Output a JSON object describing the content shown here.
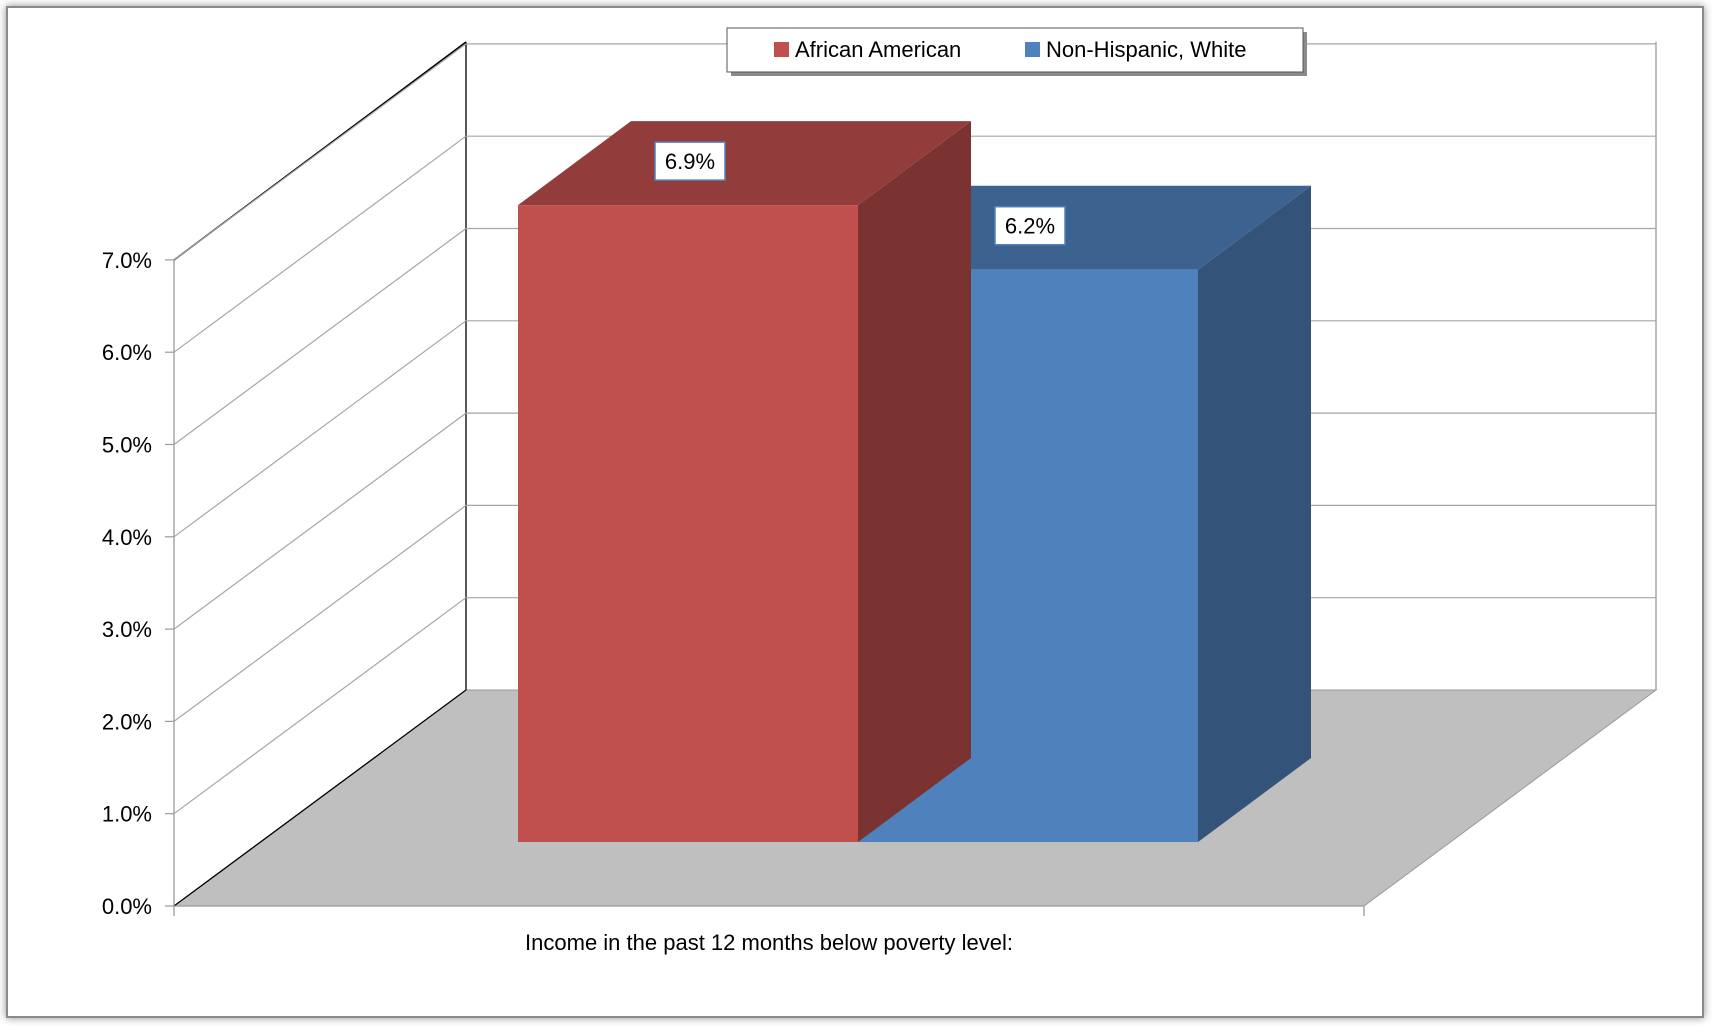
{
  "chart_data": {
    "type": "bar",
    "categories": [
      "Income in the past 12 months below poverty level:"
    ],
    "series": [
      {
        "name": "African American",
        "values": [
          6.9
        ],
        "label": "6.9%",
        "color": "#c0504d"
      },
      {
        "name": "Non-Hispanic, White",
        "values": [
          6.2
        ],
        "label": "6.2%",
        "color": "#4f81bd"
      }
    ],
    "yticks": [
      "0.0%",
      "1.0%",
      "2.0%",
      "3.0%",
      "4.0%",
      "5.0%",
      "6.0%",
      "7.0%"
    ],
    "ylim": [
      0,
      7
    ],
    "legend": "top-center",
    "grid": true,
    "three_d": true
  }
}
